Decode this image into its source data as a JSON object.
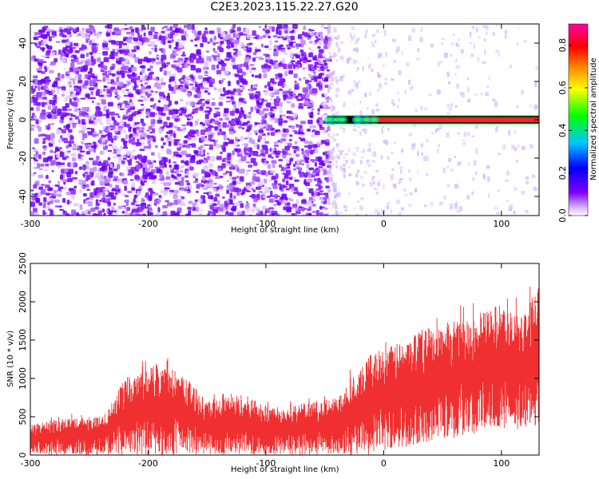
{
  "title": "C2E3.2023.115.22.27.G20",
  "chart_data": [
    {
      "type": "heatmap",
      "title": "C2E3.2023.115.22.27.G20",
      "xlabel": "Height of straight line (km)",
      "ylabel": "Frequency (Hz)",
      "xlim": [
        -300,
        132
      ],
      "ylim": [
        -50,
        50
      ],
      "x_ticks": [
        -300,
        -200,
        -100,
        0,
        100
      ],
      "y_ticks": [
        -40,
        -20,
        0,
        20,
        40
      ],
      "grid": false,
      "colorbar": {
        "label": "Normalized spectral amplitude",
        "range": [
          0,
          0.9
        ],
        "ticks": [
          0.0,
          0.2,
          0.4,
          0.6,
          0.8
        ],
        "colormap": [
          "#ffffff",
          "#7f00ff",
          "#0000ff",
          "#00c8ff",
          "#00ff00",
          "#ffff00",
          "#ff8000",
          "#ff0000",
          "#ff00a0"
        ]
      },
      "description_regions": [
        {
          "x_range": [
            -300,
            -48
          ],
          "y_range": [
            -50,
            50
          ],
          "amplitude_range": [
            0.05,
            0.15
          ]
        },
        {
          "x_range": [
            -48,
            132
          ],
          "y_range": [
            -1.5,
            1.5
          ],
          "amplitude_range": [
            0.4,
            0.9
          ]
        },
        {
          "x_range": [
            -48,
            132
          ],
          "y_range": [
            -50,
            50
          ],
          "amplitude_range": [
            0.0,
            0.05
          ]
        }
      ]
    },
    {
      "type": "area",
      "xlabel": "Height of straight line (km)",
      "ylabel": "SNR (10 * v/v)",
      "xlim": [
        -300,
        132
      ],
      "ylim": [
        0,
        2500
      ],
      "x_ticks": [
        -300,
        -200,
        -100,
        0,
        100
      ],
      "y_ticks": [
        0,
        500,
        1000,
        1500,
        2000,
        2500
      ],
      "series_color": "#f03030",
      "envelope": {
        "x": [
          -300,
          -270,
          -240,
          -230,
          -220,
          -200,
          -190,
          -170,
          -160,
          -150,
          -140,
          -120,
          -100,
          -80,
          -60,
          -40,
          -30,
          -20,
          -10,
          0,
          20,
          30,
          50,
          70,
          90,
          100,
          110,
          120,
          132
        ],
        "upper": [
          400,
          480,
          500,
          700,
          1000,
          1150,
          1200,
          1050,
          900,
          700,
          750,
          800,
          650,
          650,
          700,
          750,
          1000,
          1100,
          1350,
          1400,
          1500,
          1650,
          1700,
          1800,
          1900,
          2000,
          1850,
          1900,
          2200
        ],
        "lower": [
          0,
          0,
          0,
          0,
          0,
          0,
          0,
          0,
          0,
          0,
          0,
          0,
          0,
          0,
          0,
          0,
          0,
          0,
          0,
          30,
          100,
          150,
          200,
          250,
          300,
          350,
          300,
          350,
          400
        ]
      }
    }
  ]
}
